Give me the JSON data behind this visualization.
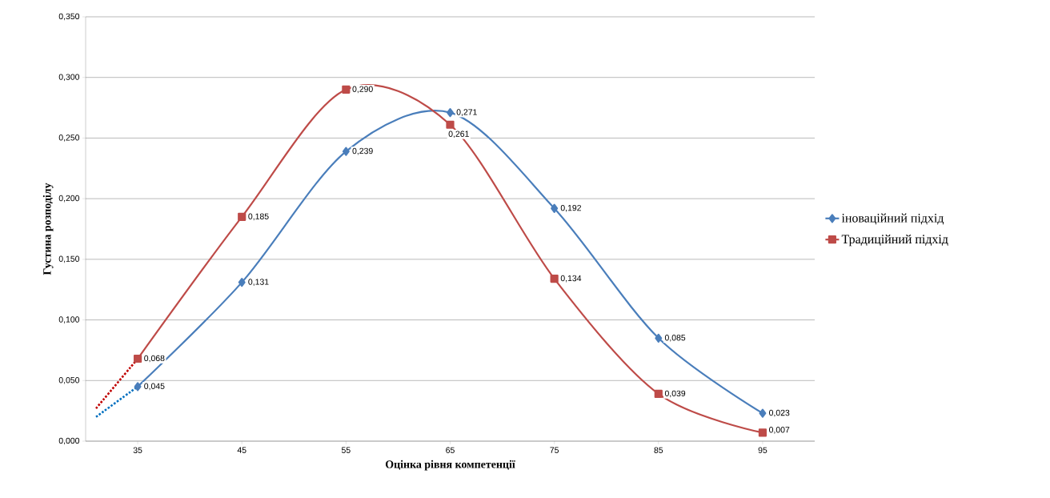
{
  "chart_data": {
    "type": "line",
    "xlabel": "Оцінка рівня компетенції",
    "ylabel": "Густина розподілу",
    "xlim": [
      30,
      100
    ],
    "xticks": [
      35,
      45,
      55,
      65,
      75,
      85,
      95
    ],
    "ylim": [
      0,
      0.35
    ],
    "yticks": [
      {
        "value": 0,
        "label": "0,000"
      },
      {
        "value": 0.05,
        "label": "0,050"
      },
      {
        "value": 0.1,
        "label": "0,100"
      },
      {
        "value": 0.15,
        "label": "0,150"
      },
      {
        "value": 0.2,
        "label": "0,200"
      },
      {
        "value": 0.25,
        "label": "0,250"
      },
      {
        "value": 0.3,
        "label": "0,300"
      },
      {
        "value": 0.35,
        "label": "0,350"
      }
    ],
    "grid": "y",
    "legend": "right",
    "series": [
      {
        "name": "іноваційний підхід",
        "color": "#4a7ebb",
        "marker": "diamond",
        "line_style": "solid",
        "x": [
          35,
          45,
          55,
          65,
          75,
          85,
          95
        ],
        "values": [
          0.045,
          0.131,
          0.239,
          0.271,
          0.192,
          0.085,
          0.023
        ],
        "value_labels": [
          "0,045",
          "0,131",
          "0,239",
          "0,271",
          "0,192",
          "0,085",
          "0,023"
        ]
      },
      {
        "name": "Традиційний підхід",
        "color": "#be4b48",
        "marker": "square",
        "line_style": "solid",
        "x": [
          35,
          45,
          55,
          65,
          75,
          85,
          95
        ],
        "values": [
          0.068,
          0.185,
          0.29,
          0.261,
          0.134,
          0.039,
          0.007
        ],
        "value_labels": [
          "0,068",
          "0,185",
          "0,290",
          "0,261",
          "0,134",
          "0,039",
          "0,007"
        ]
      },
      {
        "color": "#0070c0",
        "marker": "none",
        "line_style": "dotted",
        "x": [
          31,
          35
        ],
        "values": [
          0.02,
          0.045
        ]
      },
      {
        "color": "#c00000",
        "marker": "none",
        "line_style": "dotted",
        "x": [
          31,
          35
        ],
        "values": [
          0.027,
          0.068
        ]
      }
    ]
  }
}
